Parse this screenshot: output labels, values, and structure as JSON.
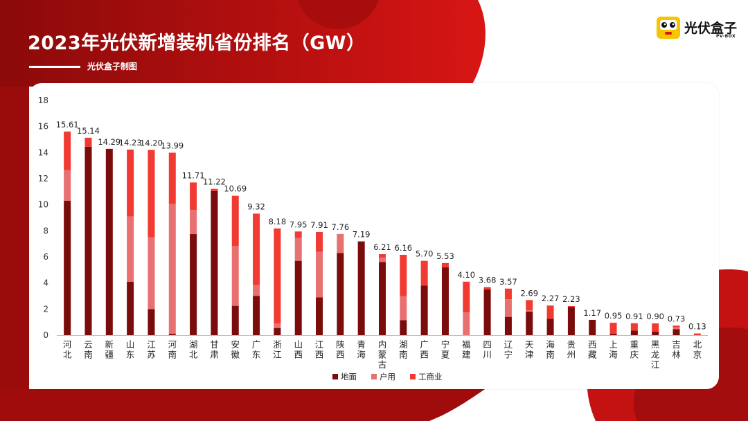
{
  "header": {
    "title": "2023年光伏新增装机省份排名（GW）",
    "subtitle": "光伏盒子制图"
  },
  "logo": {
    "text": "光伏盒子",
    "subtext": "PV-BOX"
  },
  "chart_data": {
    "type": "bar",
    "stacked": true,
    "title": "2023年光伏新增装机省份排名（GW）",
    "ylim": [
      0,
      18
    ],
    "yticks": [
      "0",
      "2",
      "4",
      "6",
      "8",
      "10",
      "12",
      "14",
      "16",
      "18"
    ],
    "grid": false,
    "legend_position": "bottom",
    "categories": [
      "河北",
      "云南",
      "新疆",
      "山东",
      "江苏",
      "河南",
      "湖北",
      "甘肃",
      "安徽",
      "广东",
      "浙江",
      "山西",
      "江西",
      "陕西",
      "青海",
      "内蒙古",
      "湖南",
      "广西",
      "宁夏",
      "福建",
      "四川",
      "辽宁",
      "天津",
      "海南",
      "贵州",
      "西藏",
      "上海",
      "重庆",
      "黑龙江",
      "吉林",
      "北京"
    ],
    "totals": [
      "15.61",
      "15.14",
      "14.29",
      "14.23",
      "14.20",
      "13.99",
      "11.71",
      "11.22",
      "10.69",
      "9.32",
      "8.18",
      "7.95",
      "7.91",
      "7.76",
      "7.19",
      "6.21",
      "6.16",
      "5.70",
      "5.53",
      "4.10",
      "3.68",
      "3.57",
      "2.69",
      "2.27",
      "2.23",
      "1.17",
      "0.95",
      "0.91",
      "0.90",
      "0.73",
      "0.13"
    ],
    "series": [
      {
        "name": "地面",
        "color": "#7a0c0c",
        "values": [
          10.3,
          14.45,
          14.29,
          4.1,
          2.0,
          0.1,
          7.75,
          11.05,
          2.25,
          3.0,
          0.55,
          5.7,
          2.9,
          6.3,
          7.19,
          5.6,
          1.15,
          3.8,
          5.2,
          0.0,
          3.5,
          1.4,
          1.8,
          1.25,
          2.15,
          1.17,
          0.12,
          0.35,
          0.28,
          0.45,
          0.0
        ]
      },
      {
        "name": "户用",
        "color": "#e87070",
        "values": [
          2.35,
          0.0,
          0.0,
          5.0,
          5.5,
          9.95,
          1.85,
          0.0,
          4.6,
          0.85,
          0.35,
          1.75,
          3.5,
          1.46,
          0.0,
          0.35,
          1.85,
          0.0,
          0.0,
          1.75,
          0.0,
          1.35,
          0.1,
          0.0,
          0.0,
          0.0,
          0.0,
          0.0,
          0.0,
          0.15,
          0.0
        ]
      },
      {
        "name": "工商业",
        "color": "#f03a32",
        "values": [
          2.96,
          0.69,
          0.0,
          5.13,
          6.7,
          3.94,
          2.11,
          0.17,
          3.84,
          5.47,
          7.28,
          0.5,
          1.51,
          0.0,
          0.0,
          0.26,
          3.16,
          1.9,
          0.33,
          2.35,
          0.18,
          0.82,
          0.79,
          1.02,
          0.08,
          0.0,
          0.83,
          0.56,
          0.62,
          0.13,
          0.13
        ]
      }
    ]
  }
}
